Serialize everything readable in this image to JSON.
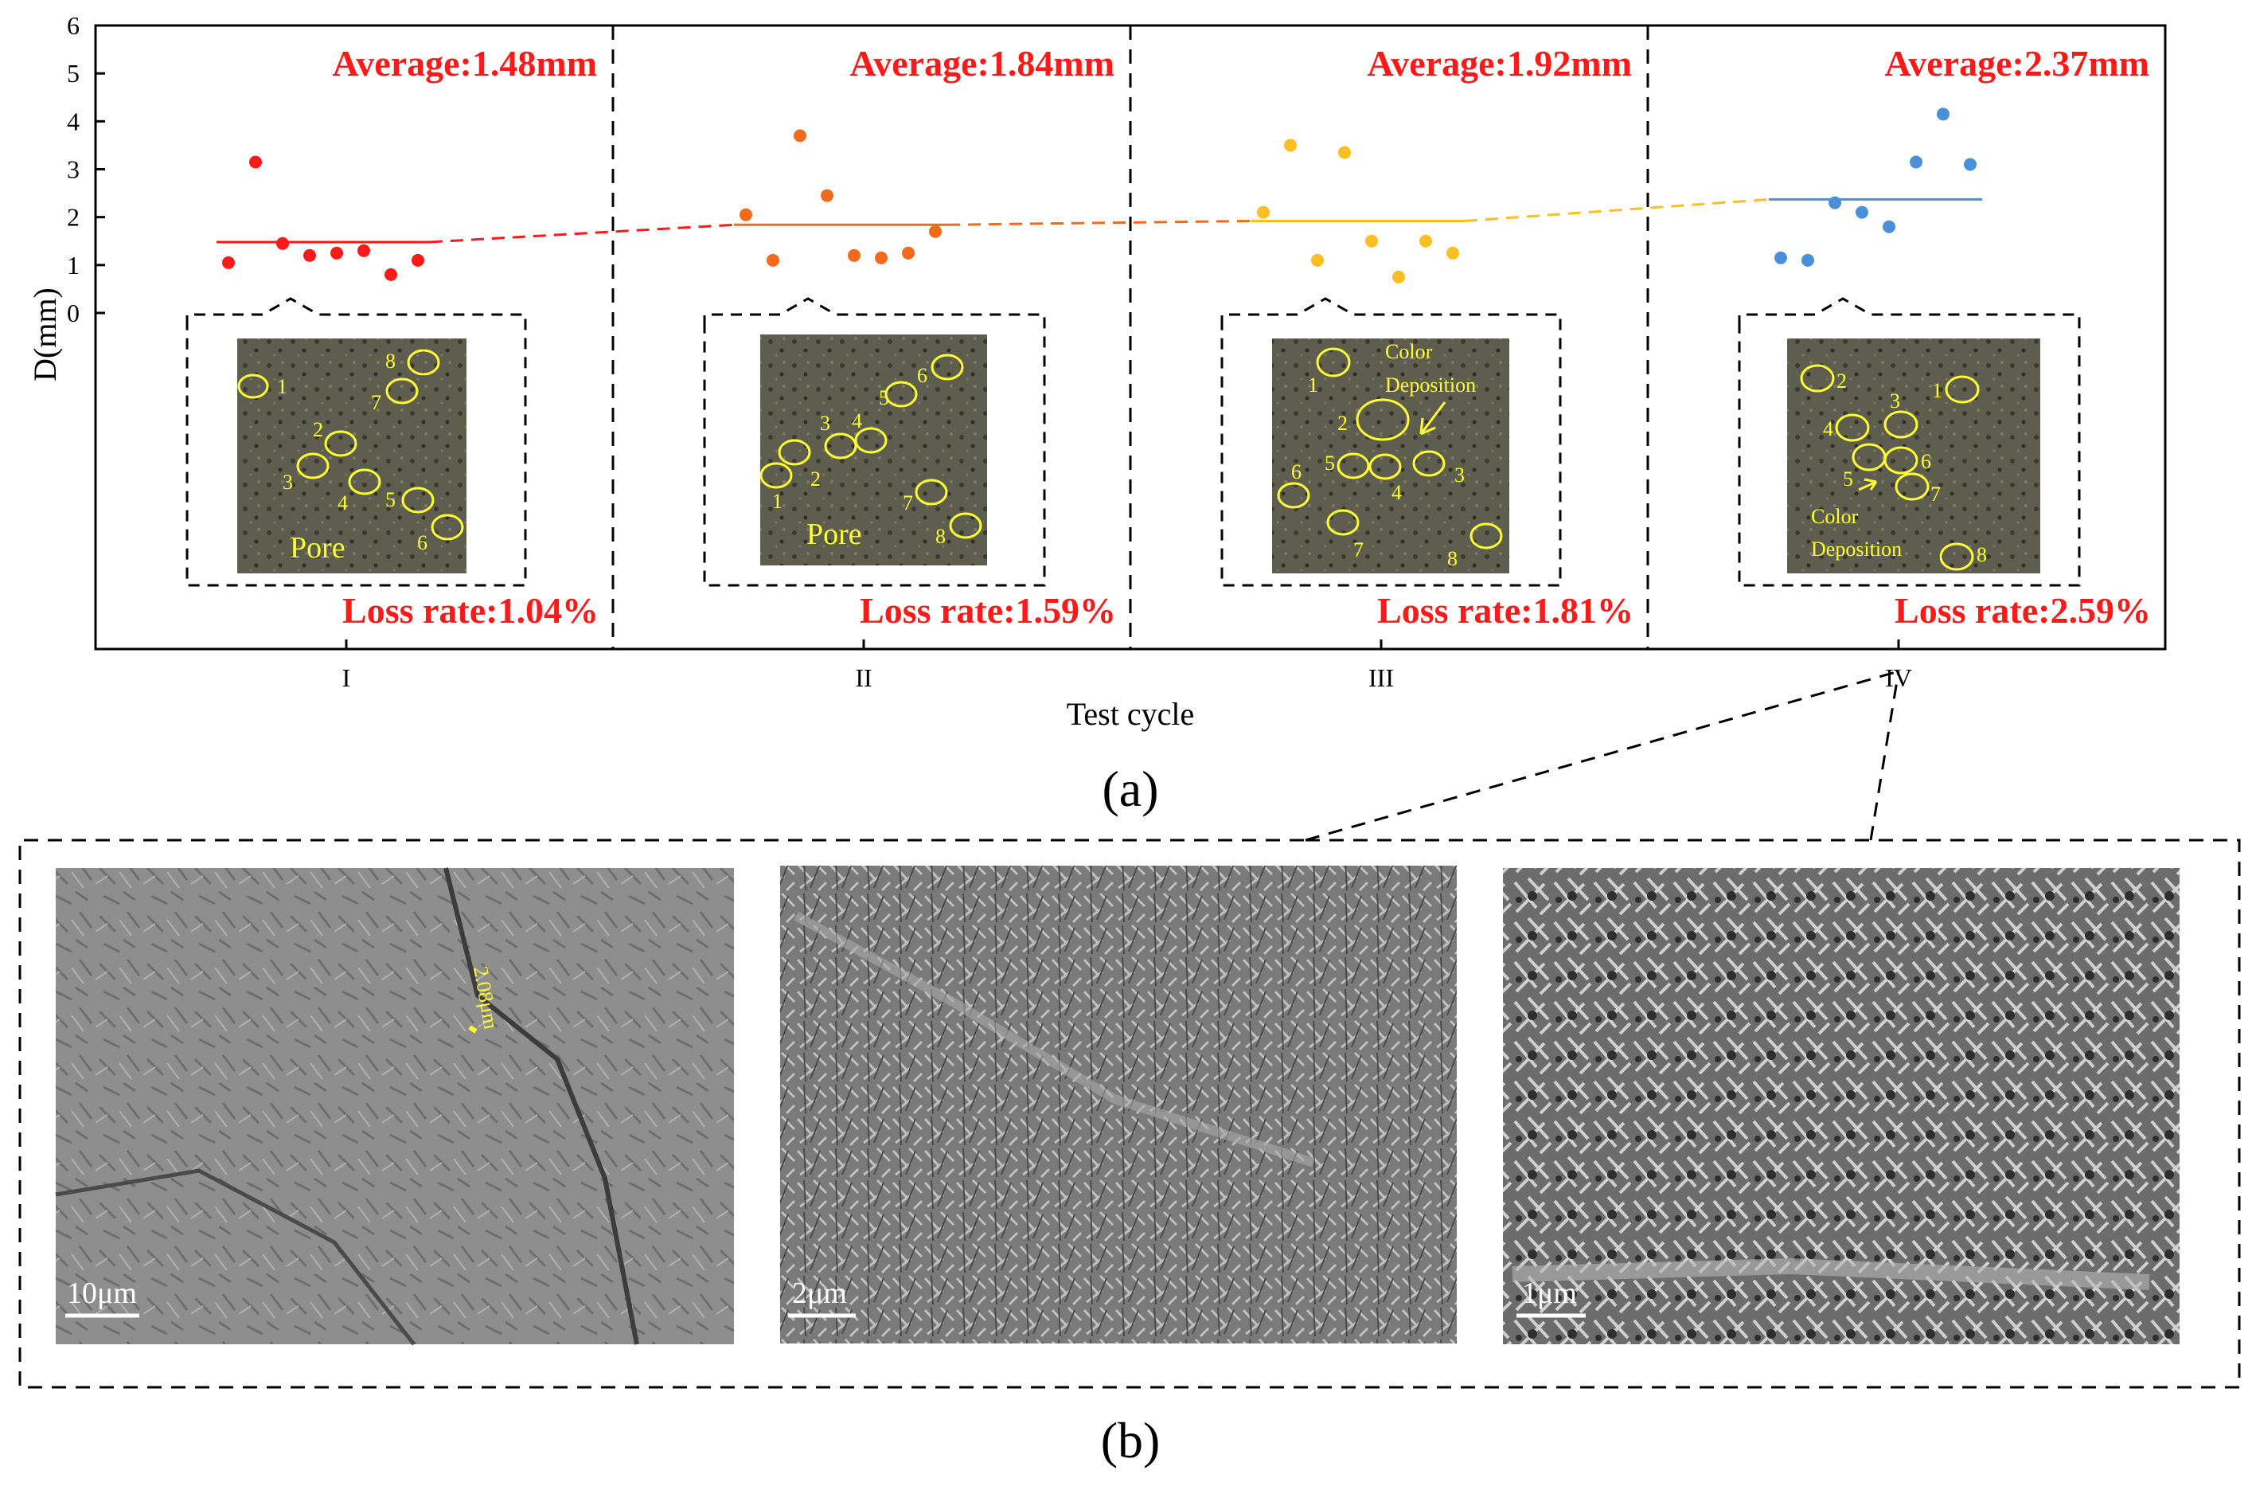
{
  "chart_data": {
    "type": "scatter",
    "ylabel": "D(mm)",
    "xlabel": "Test cycle",
    "ylim": [
      0,
      6
    ],
    "yticks": [
      "0",
      "1",
      "2",
      "3",
      "4",
      "5",
      "6"
    ],
    "categories": [
      "I",
      "II",
      "III",
      "IV"
    ],
    "series": [
      {
        "category": "I",
        "color": "#ff1a1a",
        "average": 1.48,
        "average_label": "Average:1.48mm",
        "loss_label": "Loss rate:1.04%",
        "values": [
          1.05,
          3.15,
          1.45,
          1.2,
          1.25,
          1.3,
          0.8,
          1.1
        ]
      },
      {
        "category": "II",
        "color": "#f26b1d",
        "average": 1.84,
        "average_label": "Average:1.84mm",
        "loss_label": "Loss rate:1.59%",
        "values": [
          2.05,
          1.1,
          3.7,
          2.45,
          1.2,
          1.15,
          1.25,
          1.7
        ]
      },
      {
        "category": "III",
        "color": "#fbbf24",
        "average": 1.92,
        "average_label": "Average:1.92mm",
        "loss_label": "Loss rate:1.81%",
        "values": [
          2.1,
          3.5,
          1.1,
          3.35,
          1.5,
          0.75,
          1.5,
          1.25
        ]
      },
      {
        "category": "IV",
        "color": "#4a90d9",
        "average": 2.37,
        "average_label": "Average:2.37mm",
        "loss_label": "Loss rate:2.59%",
        "values": [
          1.15,
          1.1,
          2.3,
          2.1,
          1.8,
          3.15,
          4.15,
          3.1
        ]
      }
    ]
  },
  "photo_labels": {
    "I": [
      "1",
      "2",
      "3",
      "4",
      "5",
      "6",
      "7",
      "8",
      "Pore"
    ],
    "II": [
      "1",
      "2",
      "3",
      "4",
      "5",
      "6",
      "7",
      "8",
      "Pore"
    ],
    "III": [
      "1",
      "2",
      "3",
      "4",
      "5",
      "6",
      "7",
      "8",
      "Color",
      "Deposition"
    ],
    "IV": [
      "1",
      "2",
      "3",
      "4",
      "5",
      "6",
      "7",
      "8",
      "Color",
      "Deposition"
    ]
  },
  "sem": {
    "micro_label": "2.08μm",
    "scales": [
      "10μm",
      "2μm",
      "1μm"
    ]
  },
  "panels": {
    "a": "(a)",
    "b": "(b)"
  },
  "colors": {
    "sem_bg": "#8a8a8a",
    "photo_bg": "#5e5e4f",
    "marker_yellow": "#ffff33"
  }
}
